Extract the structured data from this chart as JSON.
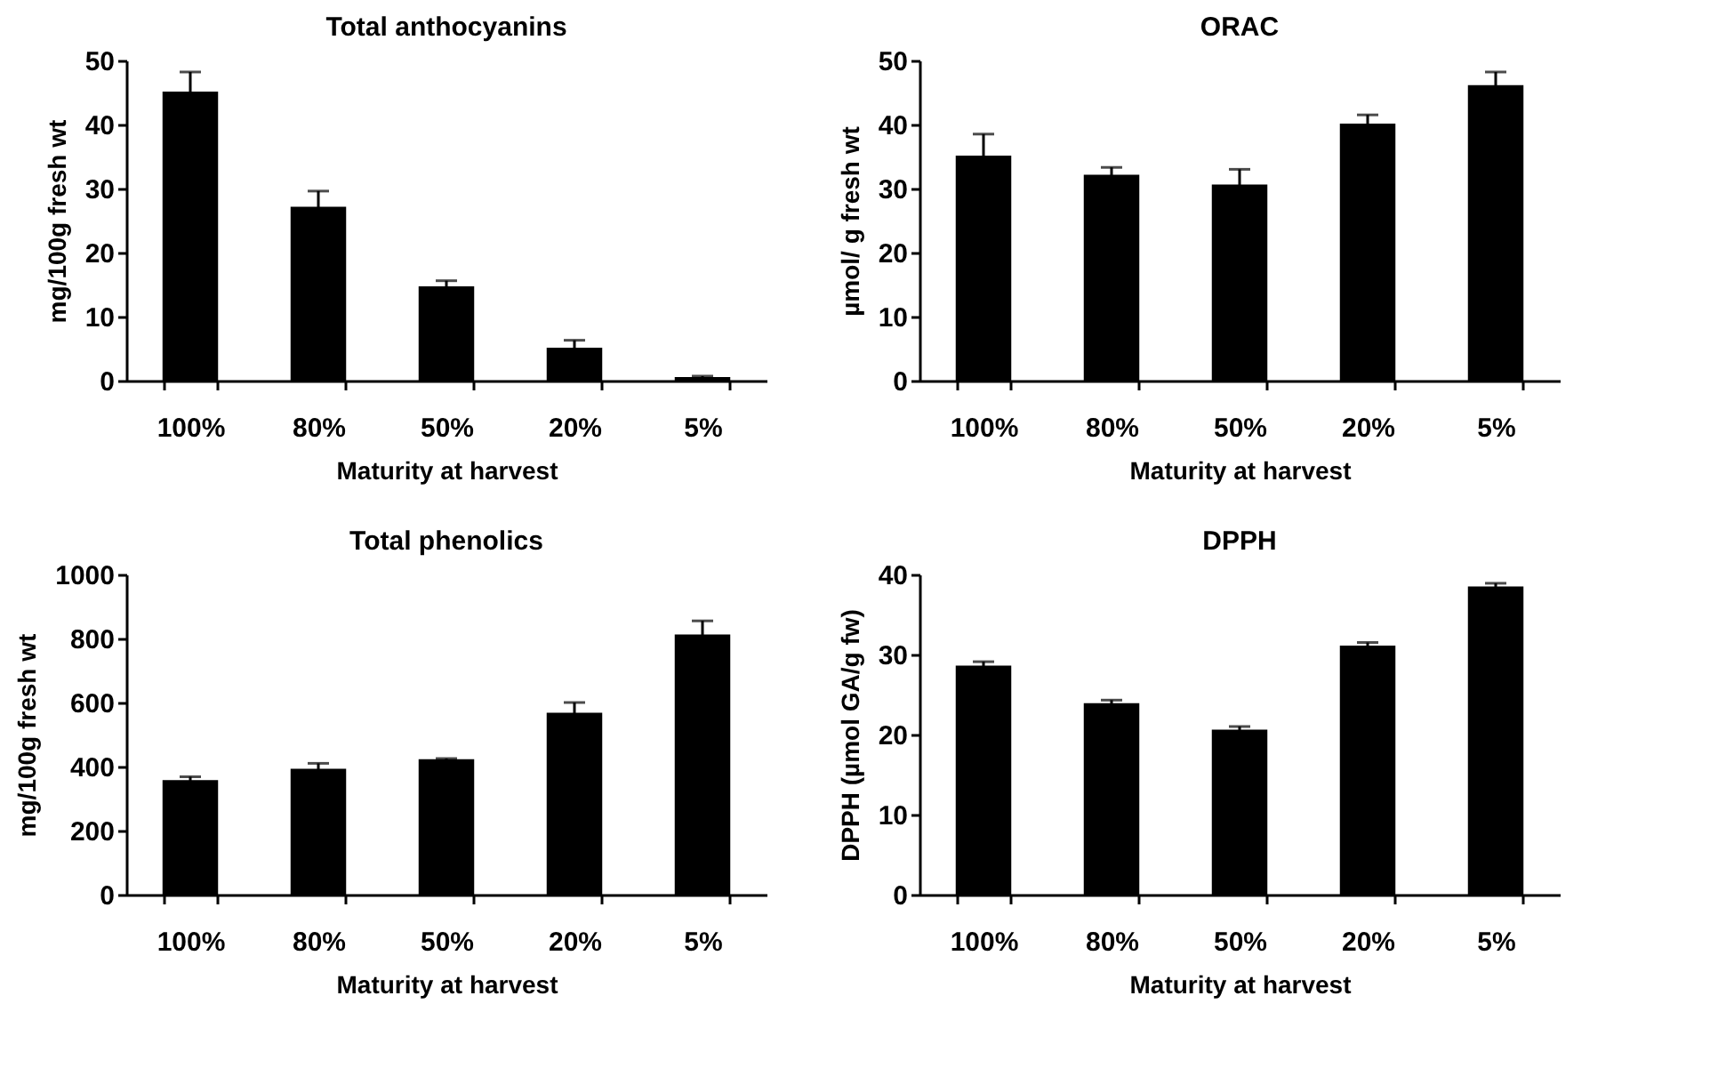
{
  "chart_data": [
    {
      "type": "bar",
      "title": "Total anthocyanins",
      "xlabel": "Maturity at harvest",
      "ylabel": "mg/100g fresh wt",
      "categories": [
        "100%",
        "80%",
        "50%",
        "20%",
        "5%"
      ],
      "values": [
        45,
        27,
        14.6,
        5,
        0.4
      ],
      "errors": [
        [
          45,
          48.2
        ],
        [
          27,
          29.6
        ],
        [
          14.6,
          15.6
        ],
        [
          5,
          6.3
        ],
        [
          0.4,
          0.7
        ]
      ],
      "color": "#000000",
      "ylim": [
        0,
        50
      ],
      "yticks": [
        0,
        10,
        20,
        30,
        40,
        50
      ],
      "grid": false
    },
    {
      "type": "bar",
      "title": "ORAC",
      "xlabel": "Maturity at harvest",
      "ylabel": "µmol/ g fresh wt",
      "categories": [
        "100%",
        "80%",
        "50%",
        "20%",
        "5%"
      ],
      "values": [
        35,
        32,
        30.5,
        40,
        46
      ],
      "errors": [
        [
          35,
          38.5
        ],
        [
          32,
          33.3
        ],
        [
          30.5,
          33
        ],
        [
          40,
          41.5
        ],
        [
          46,
          48.2
        ]
      ],
      "color": "#000000",
      "ylim": [
        0,
        50
      ],
      "yticks": [
        0,
        10,
        20,
        30,
        40,
        50
      ],
      "grid": false
    },
    {
      "type": "bar",
      "title": "Total phenolics",
      "xlabel": "Maturity at harvest",
      "ylabel": "mg/100g fresh wt",
      "categories": [
        "100%",
        "80%",
        "50%",
        "20%",
        "5%"
      ],
      "values": [
        355,
        390,
        420,
        565,
        810
      ],
      "errors": [
        [
          355,
          368
        ],
        [
          390,
          410
        ],
        [
          420,
          425
        ],
        [
          565,
          600
        ],
        [
          810,
          855
        ]
      ],
      "color": "#000000",
      "ylim": [
        0,
        1000
      ],
      "yticks": [
        0,
        200,
        400,
        600,
        800,
        1000
      ],
      "grid": false
    },
    {
      "type": "bar",
      "title": "DPPH",
      "xlabel": "Maturity at harvest",
      "ylabel": "DPPH (µmol GA/g fw)",
      "categories": [
        "100%",
        "80%",
        "50%",
        "20%",
        "5%"
      ],
      "values": [
        28.5,
        23.8,
        20.5,
        31,
        38.4
      ],
      "errors": [
        [
          28.5,
          29.1
        ],
        [
          23.8,
          24.3
        ],
        [
          20.5,
          21
        ],
        [
          31,
          31.5
        ],
        [
          38.4,
          38.9
        ]
      ],
      "color": "#000000",
      "ylim": [
        0,
        40
      ],
      "yticks": [
        0,
        10,
        20,
        30,
        40
      ],
      "grid": false
    }
  ]
}
